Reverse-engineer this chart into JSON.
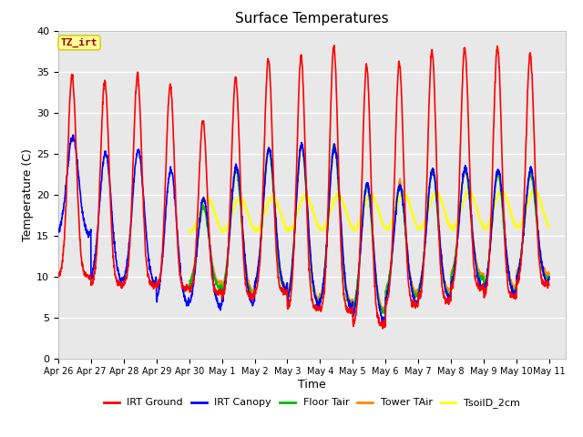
{
  "title": "Surface Temperatures",
  "xlabel": "Time",
  "ylabel": "Temperature (C)",
  "ylim": [
    0,
    40
  ],
  "background_color": "#e8e8e8",
  "grid_color": "white",
  "annotation_text": "TZ_irt",
  "annotation_bg": "#ffff99",
  "annotation_border": "#cccc00",
  "annotation_text_color": "#990000",
  "colors": {
    "IRT Ground": "#ff0000",
    "IRT Canopy": "#0000ff",
    "Floor Tair": "#00bb00",
    "Tower TAir": "#ff8800",
    "TsoilD_2cm": "#ffff00"
  },
  "legend_labels": [
    "IRT Ground",
    "IRT Canopy",
    "Floor Tair",
    "Tower TAir",
    "TsoilD_2cm"
  ],
  "x_tick_labels": [
    "Apr 26",
    "Apr 27",
    "Apr 28",
    "Apr 29",
    "Apr 30",
    "May 1",
    "May 2",
    "May 3",
    "May 4",
    "May 5",
    "May 6",
    "May 7",
    "May 8",
    "May 9",
    "May 10",
    "May 11"
  ],
  "num_days": 15,
  "pts_per_day": 144
}
